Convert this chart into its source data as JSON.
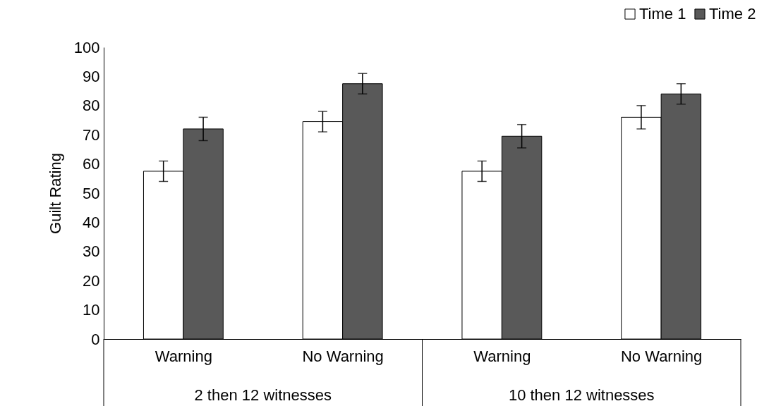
{
  "chart_data": {
    "type": "bar",
    "ylabel": "Guilt Rating",
    "categories": [
      "Warning",
      "No Warning",
      "Warning",
      "No Warning"
    ],
    "annotations": [
      "2 then 12 witnesses",
      "10 then 12 witnesses"
    ],
    "series": [
      {
        "name": "Time 1",
        "color": "#ffffff",
        "values": [
          57.5,
          74.5,
          57.5,
          76
        ],
        "errors": [
          3.5,
          3.5,
          3.5,
          4
        ]
      },
      {
        "name": "Time 2",
        "color": "#595959",
        "values": [
          72,
          87.5,
          69.5,
          84
        ],
        "errors": [
          4,
          3.5,
          4,
          3.5
        ]
      }
    ],
    "ylim": [
      0,
      100
    ],
    "yticks": [
      0,
      10,
      20,
      30,
      40,
      50,
      60,
      70,
      80,
      90,
      100
    ],
    "grid": false,
    "legend": "top right"
  }
}
